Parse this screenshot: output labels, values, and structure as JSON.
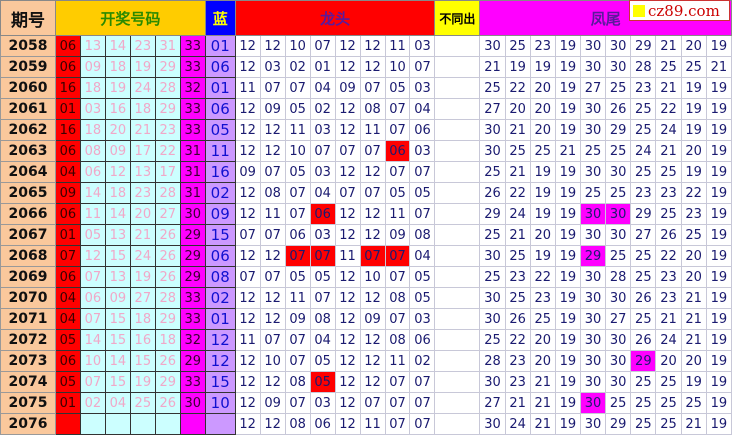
{
  "header": {
    "period": "期号",
    "draw": "开奖号码",
    "blue": "蓝",
    "longtou": "龙头",
    "butongchu": "不同出",
    "fengwei": "凤尾"
  },
  "logo": {
    "text": "cz89.com"
  },
  "colors": {
    "highlight_longtou": "#ff0000",
    "highlight_fengwei": "#ff00ff"
  },
  "rows": [
    {
      "period": "2058",
      "red": "06",
      "mid": [
        "13",
        "14",
        "23",
        "31"
      ],
      "max": "33",
      "blue": "01",
      "longtou": [
        "12",
        "12",
        "10",
        "07",
        "12",
        "12",
        "11",
        "03"
      ],
      "fengwei": [
        "30",
        "25",
        "23",
        "19",
        "30",
        "30",
        "29",
        "21",
        "20",
        "19"
      ],
      "lt_hl": [],
      "fw_hl": []
    },
    {
      "period": "2059",
      "red": "06",
      "mid": [
        "09",
        "18",
        "19",
        "29"
      ],
      "max": "33",
      "blue": "06",
      "longtou": [
        "12",
        "03",
        "02",
        "01",
        "12",
        "12",
        "10",
        "07"
      ],
      "fengwei": [
        "21",
        "19",
        "19",
        "19",
        "30",
        "30",
        "28",
        "25",
        "25",
        "21"
      ],
      "lt_hl": [],
      "fw_hl": []
    },
    {
      "period": "2060",
      "red": "16",
      "mid": [
        "18",
        "19",
        "24",
        "28"
      ],
      "max": "32",
      "blue": "01",
      "longtou": [
        "11",
        "07",
        "07",
        "04",
        "09",
        "07",
        "05",
        "03"
      ],
      "fengwei": [
        "25",
        "22",
        "20",
        "19",
        "27",
        "25",
        "23",
        "21",
        "19",
        "19"
      ],
      "lt_hl": [],
      "fw_hl": []
    },
    {
      "period": "2061",
      "red": "01",
      "mid": [
        "03",
        "16",
        "18",
        "29"
      ],
      "max": "33",
      "blue": "06",
      "longtou": [
        "12",
        "09",
        "05",
        "02",
        "12",
        "08",
        "07",
        "04"
      ],
      "fengwei": [
        "27",
        "20",
        "20",
        "19",
        "30",
        "26",
        "25",
        "22",
        "19",
        "19"
      ],
      "lt_hl": [],
      "fw_hl": []
    },
    {
      "period": "2062",
      "red": "16",
      "mid": [
        "18",
        "20",
        "21",
        "23"
      ],
      "max": "33",
      "blue": "05",
      "longtou": [
        "12",
        "12",
        "11",
        "03",
        "12",
        "11",
        "07",
        "06"
      ],
      "fengwei": [
        "30",
        "21",
        "20",
        "19",
        "30",
        "29",
        "25",
        "24",
        "19",
        "19"
      ],
      "lt_hl": [],
      "fw_hl": []
    },
    {
      "period": "2063",
      "red": "06",
      "mid": [
        "08",
        "09",
        "17",
        "22"
      ],
      "max": "31",
      "blue": "11",
      "longtou": [
        "12",
        "12",
        "10",
        "07",
        "07",
        "07",
        "06",
        "03"
      ],
      "fengwei": [
        "30",
        "25",
        "25",
        "21",
        "25",
        "25",
        "24",
        "21",
        "20",
        "19"
      ],
      "lt_hl": [
        6
      ],
      "fw_hl": []
    },
    {
      "period": "2064",
      "red": "04",
      "mid": [
        "06",
        "12",
        "13",
        "17"
      ],
      "max": "31",
      "blue": "16",
      "longtou": [
        "09",
        "07",
        "05",
        "03",
        "12",
        "12",
        "07",
        "07"
      ],
      "fengwei": [
        "25",
        "21",
        "19",
        "19",
        "30",
        "30",
        "25",
        "25",
        "19",
        "19"
      ],
      "lt_hl": [],
      "fw_hl": []
    },
    {
      "period": "2065",
      "red": "09",
      "mid": [
        "14",
        "18",
        "23",
        "28"
      ],
      "max": "31",
      "blue": "02",
      "longtou": [
        "12",
        "08",
        "07",
        "04",
        "07",
        "07",
        "05",
        "05"
      ],
      "fengwei": [
        "26",
        "22",
        "19",
        "19",
        "25",
        "25",
        "23",
        "23",
        "22",
        "19"
      ],
      "lt_hl": [],
      "fw_hl": []
    },
    {
      "period": "2066",
      "red": "06",
      "mid": [
        "11",
        "14",
        "20",
        "27"
      ],
      "max": "30",
      "blue": "09",
      "longtou": [
        "12",
        "11",
        "07",
        "06",
        "12",
        "12",
        "11",
        "07"
      ],
      "fengwei": [
        "29",
        "24",
        "19",
        "19",
        "30",
        "30",
        "29",
        "25",
        "23",
        "19"
      ],
      "lt_hl": [
        3
      ],
      "fw_hl": [
        4,
        5
      ]
    },
    {
      "period": "2067",
      "red": "01",
      "mid": [
        "05",
        "13",
        "21",
        "26"
      ],
      "max": "29",
      "blue": "15",
      "longtou": [
        "07",
        "07",
        "06",
        "03",
        "12",
        "12",
        "09",
        "08"
      ],
      "fengwei": [
        "25",
        "21",
        "20",
        "19",
        "30",
        "30",
        "27",
        "26",
        "25",
        "19"
      ],
      "lt_hl": [],
      "fw_hl": []
    },
    {
      "period": "2068",
      "red": "07",
      "mid": [
        "12",
        "15",
        "24",
        "26"
      ],
      "max": "29",
      "blue": "06",
      "longtou": [
        "12",
        "12",
        "07",
        "07",
        "11",
        "07",
        "07",
        "04"
      ],
      "fengwei": [
        "30",
        "25",
        "19",
        "19",
        "29",
        "25",
        "25",
        "22",
        "20",
        "19"
      ],
      "lt_hl": [
        2,
        3,
        5,
        6
      ],
      "fw_hl": [
        4
      ]
    },
    {
      "period": "2069",
      "red": "06",
      "mid": [
        "07",
        "13",
        "19",
        "26"
      ],
      "max": "29",
      "blue": "08",
      "longtou": [
        "07",
        "07",
        "05",
        "05",
        "12",
        "10",
        "07",
        "05"
      ],
      "fengwei": [
        "25",
        "23",
        "22",
        "19",
        "30",
        "28",
        "25",
        "23",
        "20",
        "19"
      ],
      "lt_hl": [],
      "fw_hl": []
    },
    {
      "period": "2070",
      "red": "04",
      "mid": [
        "06",
        "09",
        "27",
        "28"
      ],
      "max": "33",
      "blue": "02",
      "longtou": [
        "12",
        "12",
        "11",
        "07",
        "12",
        "12",
        "08",
        "05"
      ],
      "fengwei": [
        "30",
        "25",
        "23",
        "19",
        "30",
        "30",
        "26",
        "23",
        "21",
        "19"
      ],
      "lt_hl": [],
      "fw_hl": []
    },
    {
      "period": "2071",
      "red": "04",
      "mid": [
        "07",
        "15",
        "18",
        "29"
      ],
      "max": "33",
      "blue": "01",
      "longtou": [
        "12",
        "12",
        "09",
        "08",
        "12",
        "09",
        "07",
        "03"
      ],
      "fengwei": [
        "30",
        "26",
        "25",
        "19",
        "30",
        "27",
        "25",
        "21",
        "21",
        "19"
      ],
      "lt_hl": [],
      "fw_hl": []
    },
    {
      "period": "2072",
      "red": "05",
      "mid": [
        "14",
        "15",
        "16",
        "18"
      ],
      "max": "32",
      "blue": "12",
      "longtou": [
        "11",
        "07",
        "07",
        "04",
        "12",
        "12",
        "08",
        "06"
      ],
      "fengwei": [
        "25",
        "22",
        "20",
        "19",
        "30",
        "30",
        "26",
        "24",
        "21",
        "19"
      ],
      "lt_hl": [],
      "fw_hl": []
    },
    {
      "period": "2073",
      "red": "06",
      "mid": [
        "10",
        "14",
        "15",
        "26"
      ],
      "max": "29",
      "blue": "12",
      "longtou": [
        "12",
        "10",
        "07",
        "05",
        "12",
        "12",
        "11",
        "02"
      ],
      "fengwei": [
        "28",
        "23",
        "20",
        "19",
        "30",
        "30",
        "29",
        "20",
        "20",
        "19"
      ],
      "lt_hl": [],
      "fw_hl": [
        6
      ]
    },
    {
      "period": "2074",
      "red": "05",
      "mid": [
        "07",
        "15",
        "19",
        "29"
      ],
      "max": "33",
      "blue": "15",
      "longtou": [
        "12",
        "12",
        "08",
        "05",
        "12",
        "12",
        "07",
        "07"
      ],
      "fengwei": [
        "30",
        "23",
        "21",
        "19",
        "30",
        "30",
        "25",
        "25",
        "19",
        "19"
      ],
      "lt_hl": [
        3
      ],
      "fw_hl": []
    },
    {
      "period": "2075",
      "red": "01",
      "mid": [
        "02",
        "04",
        "25",
        "26"
      ],
      "max": "30",
      "blue": "10",
      "longtou": [
        "12",
        "09",
        "07",
        "03",
        "12",
        "07",
        "07",
        "07"
      ],
      "fengwei": [
        "27",
        "21",
        "21",
        "19",
        "30",
        "25",
        "25",
        "25",
        "25",
        "19"
      ],
      "lt_hl": [],
      "fw_hl": [
        4
      ]
    },
    {
      "period": "2076",
      "red": "",
      "mid": [
        "",
        "",
        "",
        ""
      ],
      "max": "",
      "blue": "",
      "longtou": [
        "12",
        "12",
        "08",
        "06",
        "12",
        "11",
        "07",
        "07"
      ],
      "fengwei": [
        "30",
        "24",
        "21",
        "19",
        "30",
        "29",
        "25",
        "25",
        "21",
        "19"
      ],
      "lt_hl": [],
      "fw_hl": []
    }
  ]
}
